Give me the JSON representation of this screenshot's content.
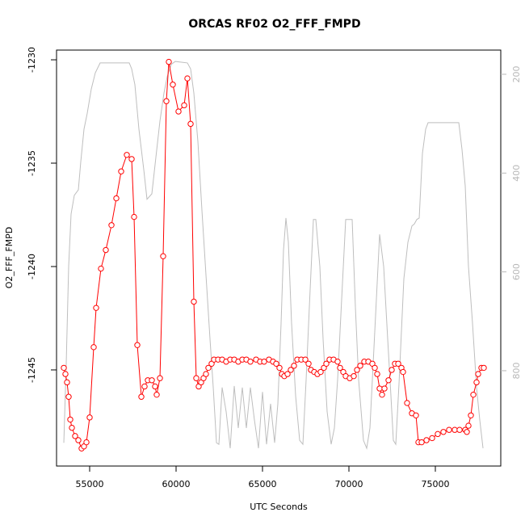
{
  "chart_data": {
    "type": "line",
    "title": "ORCAS RF02 O2_FFF_FMPD",
    "xlabel": "UTC Seconds",
    "ylabel": "O2_FFF_FMPD",
    "xlim": [
      53084,
      78785
    ],
    "xticks": [
      55000,
      60000,
      65000,
      70000,
      75000
    ],
    "ylim": [
      -1249.65,
      -1229.53
    ],
    "yticks": [
      -1230,
      -1235,
      -1240,
      -1245
    ],
    "y2lim": [
      993,
      151
    ],
    "y2ticks": [
      200,
      400,
      600,
      800
    ],
    "series": [
      {
        "color": "#bebebe",
        "axis": "y2",
        "markers": false,
        "x": [
          53505,
          53645,
          53785,
          53925,
          54112,
          54346,
          54486,
          54673,
          54860,
          55093,
          55327,
          55607,
          55888,
          57290,
          57430,
          57617,
          57850,
          58131,
          58318,
          58598,
          58832,
          59065,
          59299,
          59486,
          59720,
          59953,
          60654,
          60841,
          61028,
          61262,
          61495,
          61729,
          61963,
          62150,
          62337,
          62477,
          62664,
          62897,
          63131,
          63365,
          63598,
          63832,
          64066,
          64299,
          64533,
          64767,
          65000,
          65234,
          65467,
          65701,
          65888,
          66075,
          66215,
          66355,
          66496,
          66682,
          66916,
          67150,
          67337,
          67524,
          67710,
          67944,
          68084,
          68318,
          68505,
          68739,
          68972,
          69159,
          69346,
          69580,
          69813,
          70187,
          70374,
          70561,
          70841,
          71028,
          71215,
          71449,
          71589,
          71776,
          72010,
          72243,
          72430,
          72570,
          72711,
          72898,
          73178,
          73412,
          73645,
          73785,
          73926,
          74066,
          74253,
          74440,
          74580,
          76356,
          76542,
          76729,
          76916,
          77150,
          77384,
          77571,
          77758
        ],
        "values": [
          946,
          785,
          589,
          483,
          445,
          434,
          377,
          311,
          279,
          230,
          197,
          177,
          177,
          177,
          189,
          221,
          311,
          393,
          453,
          442,
          368,
          295,
          238,
          205,
          180,
          174,
          177,
          189,
          238,
          336,
          475,
          606,
          736,
          834,
          946,
          949,
          834,
          883,
          957,
          831,
          916,
          834,
          916,
          834,
          900,
          957,
          843,
          949,
          867,
          946,
          867,
          704,
          556,
          491,
          540,
          704,
          851,
          941,
          949,
          818,
          671,
          494,
          494,
          589,
          736,
          883,
          949,
          916,
          818,
          655,
          494,
          494,
          671,
          818,
          941,
          957,
          916,
          753,
          655,
          524,
          589,
          736,
          851,
          941,
          949,
          826,
          614,
          540,
          507,
          503,
          494,
          491,
          360,
          311,
          298,
          298,
          352,
          426,
          589,
          704,
          834,
          900,
          957
        ]
      },
      {
        "color": "#ff0000",
        "axis": "y",
        "markers": true,
        "x": [
          53505,
          53598,
          53691,
          53785,
          53878,
          53972,
          54159,
          54346,
          54533,
          54673,
          54813,
          55000,
          55234,
          55374,
          55654,
          55935,
          56262,
          56542,
          56822,
          57150,
          57430,
          57570,
          57757,
          57991,
          58178,
          58364,
          58598,
          58785,
          58879,
          59066,
          59252,
          59439,
          59580,
          59813,
          60140,
          60467,
          60654,
          60841,
          61028,
          61168,
          61308,
          61449,
          61589,
          61729,
          61869,
          62056,
          62196,
          62430,
          62664,
          62897,
          63131,
          63365,
          63598,
          63832,
          64066,
          64299,
          64627,
          64860,
          65094,
          65374,
          65608,
          65795,
          65982,
          66122,
          66262,
          66449,
          66636,
          66823,
          67010,
          67243,
          67477,
          67664,
          67804,
          67991,
          68178,
          68365,
          68552,
          68692,
          68879,
          69112,
          69346,
          69486,
          69673,
          69813,
          70047,
          70281,
          70468,
          70655,
          70888,
          71122,
          71356,
          71496,
          71636,
          71776,
          71916,
          72056,
          72290,
          72477,
          72664,
          72851,
          73038,
          73131,
          73365,
          73645,
          73879,
          74019,
          74206,
          74486,
          74813,
          75140,
          75467,
          75795,
          76122,
          76402,
          76729,
          76823,
          76916,
          77056,
          77197,
          77384,
          77477,
          77664,
          77804
        ],
        "values": [
          -1244.9,
          -1245.2,
          -1245.6,
          -1246.3,
          -1247.4,
          -1247.8,
          -1248.2,
          -1248.4,
          -1248.8,
          -1248.7,
          -1248.5,
          -1247.3,
          -1243.9,
          -1242.0,
          -1240.1,
          -1239.2,
          -1238.0,
          -1236.7,
          -1235.4,
          -1234.6,
          -1234.8,
          -1237.6,
          -1243.8,
          -1246.3,
          -1245.8,
          -1245.5,
          -1245.5,
          -1245.8,
          -1246.2,
          -1245.4,
          -1239.5,
          -1232.0,
          -1230.1,
          -1231.2,
          -1232.5,
          -1232.2,
          -1230.9,
          -1233.1,
          -1241.7,
          -1245.4,
          -1245.8,
          -1245.6,
          -1245.4,
          -1245.2,
          -1244.9,
          -1244.7,
          -1244.5,
          -1244.5,
          -1244.5,
          -1244.6,
          -1244.5,
          -1244.5,
          -1244.6,
          -1244.5,
          -1244.5,
          -1244.6,
          -1244.5,
          -1244.6,
          -1244.6,
          -1244.5,
          -1244.6,
          -1244.7,
          -1244.9,
          -1245.2,
          -1245.3,
          -1245.2,
          -1245.0,
          -1244.8,
          -1244.5,
          -1244.5,
          -1244.5,
          -1244.7,
          -1245.0,
          -1245.1,
          -1245.2,
          -1245.1,
          -1244.9,
          -1244.7,
          -1244.5,
          -1244.5,
          -1244.6,
          -1244.9,
          -1245.1,
          -1245.3,
          -1245.4,
          -1245.3,
          -1245.0,
          -1244.8,
          -1244.6,
          -1244.6,
          -1244.7,
          -1244.9,
          -1245.2,
          -1245.9,
          -1246.2,
          -1245.9,
          -1245.5,
          -1245.0,
          -1244.7,
          -1244.7,
          -1244.9,
          -1245.1,
          -1246.6,
          -1247.1,
          -1247.2,
          -1248.5,
          -1248.5,
          -1248.4,
          -1248.3,
          -1248.1,
          -1248.0,
          -1247.9,
          -1247.9,
          -1247.9,
          -1247.9,
          -1248.0,
          -1247.7,
          -1247.2,
          -1246.2,
          -1245.6,
          -1245.2,
          -1244.9,
          -1244.9
        ]
      }
    ]
  }
}
